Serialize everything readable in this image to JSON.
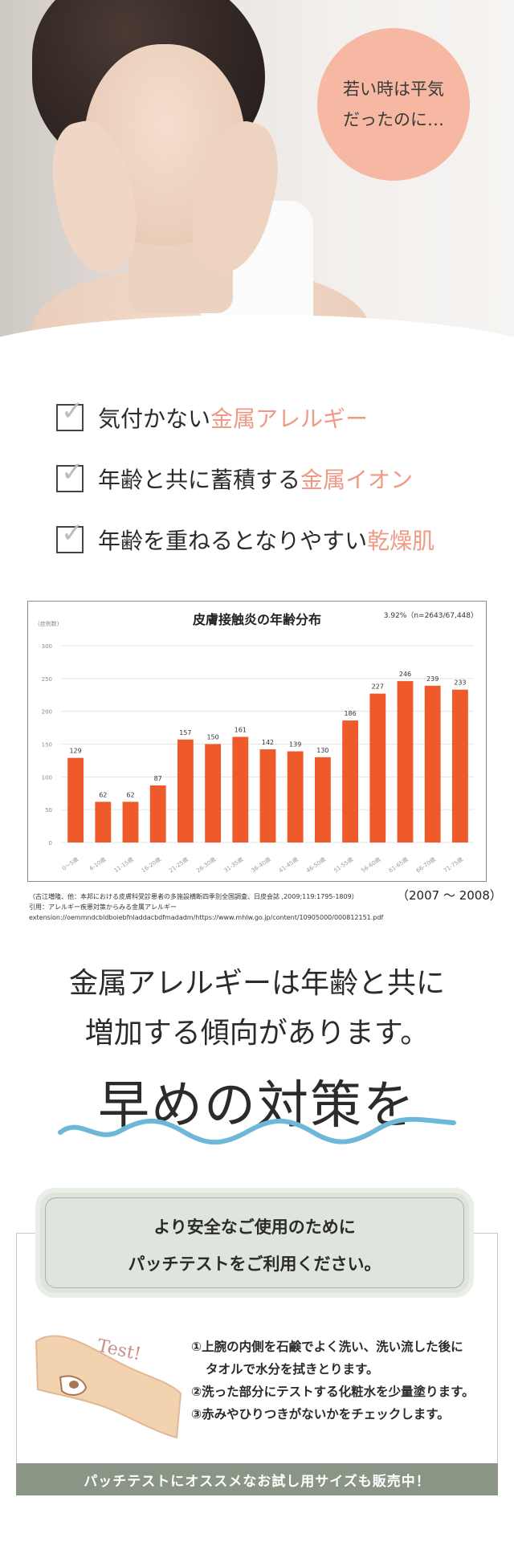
{
  "hero": {
    "bubble_line1": "若い時は平気",
    "bubble_line2": "だったのに…",
    "bubble_color": "#f6b7a3"
  },
  "checklist": [
    {
      "icon": "checkbox-icon",
      "text": "気付かない",
      "highlight": "金属アレルギー"
    },
    {
      "icon": "checkbox-icon",
      "text": "年齢と共に蓄積する",
      "highlight": "金属イオン"
    },
    {
      "icon": "checkbox-icon",
      "text": "年齢を重ねるとなりやすい",
      "highlight": "乾燥肌"
    }
  ],
  "highlight_color": "#ee9a84",
  "chart_data": {
    "type": "bar",
    "title": "皮膚接触炎の年齢分布",
    "stat_note": "3.92%（n=2643/67,448）",
    "ylabel": "(症例数)",
    "ylim": [
      0,
      300
    ],
    "yticks": [
      0,
      50,
      100,
      150,
      200,
      250,
      300
    ],
    "categories": [
      "0～5歳",
      "6-10歳",
      "11-15歳",
      "16-20歳",
      "21-25歳",
      "26-30歳",
      "31-35歳",
      "36-40歳",
      "41-45歳",
      "46-50歳",
      "51-55歳",
      "56-60歳",
      "61-65歳",
      "66-70歳",
      "71-75歳"
    ],
    "values": [
      129,
      62,
      62,
      87,
      157,
      150,
      161,
      142,
      139,
      130,
      186,
      227,
      246,
      239,
      233
    ],
    "bar_color": "#ee5a2a",
    "grid": true
  },
  "chart_source": {
    "line1": "（古江増隆、他：本邦における皮膚科受診患者の多施設横断四季別全国調査、日皮会誌 ,2009;119:1795-1809）",
    "line2": "引用：アレルギー疾患対策からみる金属アレルギー",
    "line3": "extension://oemmndcbldboiebfnladdacbdfmadadm/https://www.mhlw.go.jp/content/10905000/000812151.pdf",
    "years": "（2007 ～ 2008）"
  },
  "message": {
    "line1": "金属アレルギーは年齢と共に",
    "line2": "増加する傾向があります。",
    "line3": "早めの対策を",
    "wave_color": "#6db8d9"
  },
  "patch": {
    "title1": "より安全なご使用のために",
    "title2": "パッチテストをご利用ください。",
    "illust_label": "Test!",
    "step1": "①上腕の内側を石鹸でよく洗い、洗い流した後に",
    "step1b": "タオルで水分を拭きとります。",
    "step2": "②洗った部分にテストする化粧水を少量塗ります。",
    "step3": "③赤みやひりつきがないかをチェックします。",
    "banner": "パッチテストにオススメなお試し用サイズも販売中！",
    "banner_color": "#8a9585"
  }
}
